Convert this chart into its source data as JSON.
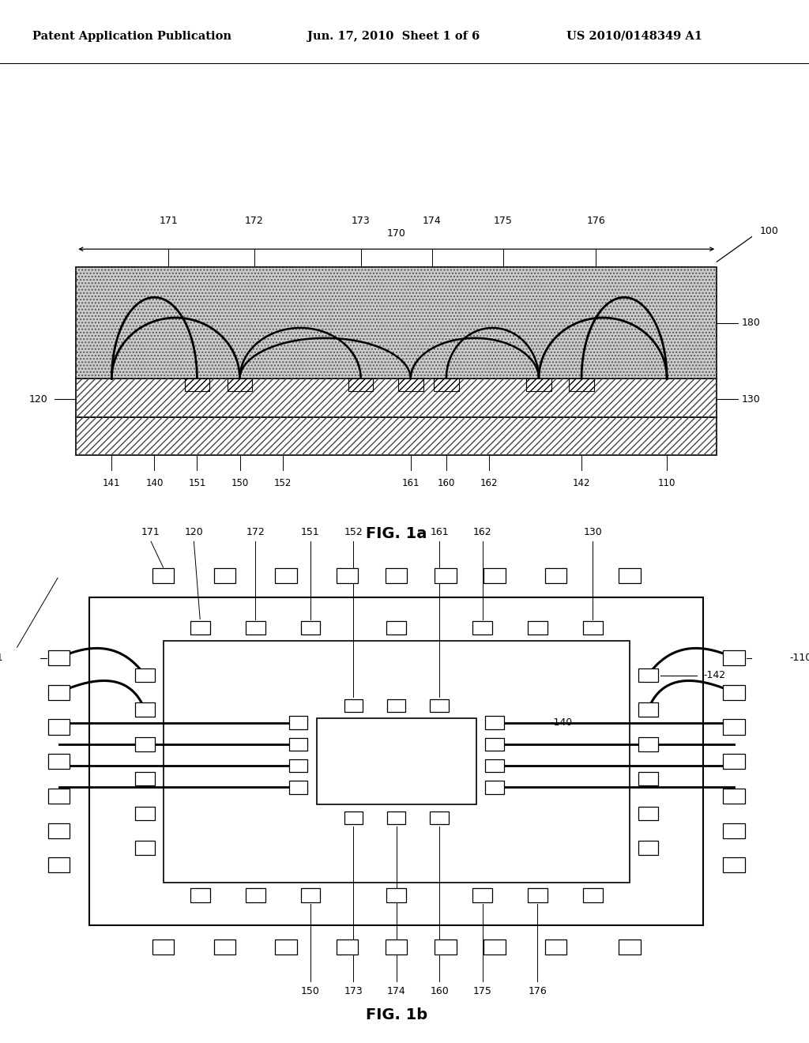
{
  "bg_color": "#ffffff",
  "header_left": "Patent Application Publication",
  "header_center": "Jun. 17, 2010  Sheet 1 of 6",
  "header_right": "US 2010/0148349 A1",
  "fig1a_label": "FIG. 1a",
  "fig1b_label": "FIG. 1b"
}
